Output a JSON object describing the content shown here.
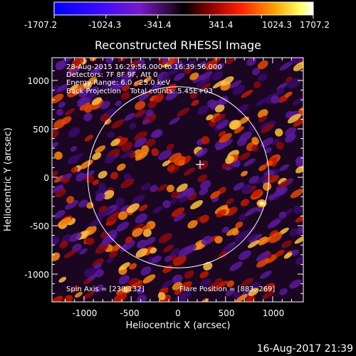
{
  "colorbar": {
    "tick_labels": [
      "-1707.2",
      "-1024.3",
      "-341.4",
      "341.4",
      "1024.3",
      "1707.2"
    ],
    "range": [
      -1707.2,
      1707.2
    ]
  },
  "plot": {
    "title": "Reconstructed RHESSI Image",
    "xlabel": "Heliocentric X (arcsec)",
    "ylabel": "Heliocentric Y (arcsec)",
    "x_ticks": [
      "-1000",
      "-500",
      "0",
      "500",
      "1000"
    ],
    "y_ticks": [
      "1000",
      "500",
      "0",
      "-500",
      "-1000"
    ],
    "info_lines": [
      "28-Aug-2015 16:29:56.000 to 16:39:56.000",
      "Detectors: 7F 8F 9F, Att 0",
      "Energy Range: 6.0 - 25.0 keV",
      "Back Projection    Total counts: 5.45E+03"
    ],
    "spin_axis": "Spin Axis = [230,132]",
    "flare_position": "Flare Position = [883,-269]"
  },
  "footer": {
    "timestamp": "16-Aug-2017 21:39"
  },
  "chart_data": {
    "type": "heatmap",
    "title": "Reconstructed RHESSI Image",
    "xlabel": "Heliocentric X (arcsec)",
    "ylabel": "Heliocentric Y (arcsec)",
    "xlim": [
      -1300,
      1300
    ],
    "ylim": [
      -1300,
      1200
    ],
    "colorbar_range": [
      -1707.2,
      1707.2
    ],
    "solar_disk": {
      "center": [
        0,
        0
      ],
      "radius": 960
    },
    "crosshair": [
      230,
      132
    ],
    "grid": false
  }
}
